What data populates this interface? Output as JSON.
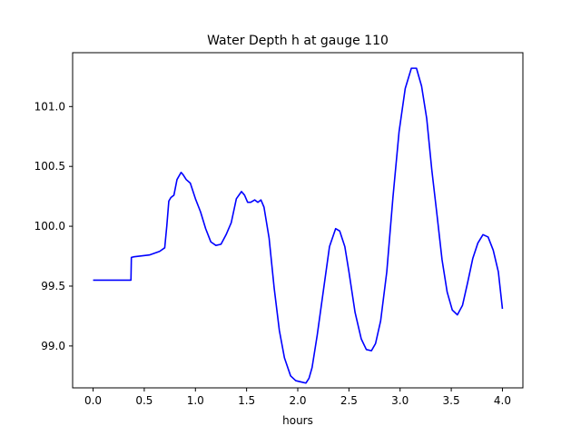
{
  "chart_data": {
    "type": "line",
    "title": "Water Depth h at gauge 110",
    "xlabel": "hours",
    "ylabel": "",
    "xlim": [
      -0.2,
      4.2
    ],
    "ylim": [
      98.65,
      101.45
    ],
    "xticks": [
      0.0,
      0.5,
      1.0,
      1.5,
      2.0,
      2.5,
      3.0,
      3.5,
      4.0
    ],
    "xtick_labels": [
      "0.0",
      "0.5",
      "1.0",
      "1.5",
      "2.0",
      "2.5",
      "3.0",
      "3.5",
      "4.0"
    ],
    "yticks": [
      99.0,
      99.5,
      100.0,
      100.5,
      101.0
    ],
    "ytick_labels": [
      "99.0",
      "99.5",
      "100.0",
      "100.5",
      "101.0"
    ],
    "grid": false,
    "series": [
      {
        "color": "#0000ff",
        "x": [
          0.0,
          0.2,
          0.37,
          0.374,
          0.4,
          0.55,
          0.65,
          0.7,
          0.72,
          0.74,
          0.76,
          0.79,
          0.82,
          0.86,
          0.88,
          0.91,
          0.95,
          1.0,
          1.05,
          1.1,
          1.15,
          1.2,
          1.25,
          1.3,
          1.35,
          1.4,
          1.45,
          1.48,
          1.51,
          1.54,
          1.58,
          1.61,
          1.64,
          1.67,
          1.72,
          1.77,
          1.82,
          1.87,
          1.93,
          1.98,
          2.03,
          2.08,
          2.11,
          2.14,
          2.19,
          2.25,
          2.31,
          2.37,
          2.41,
          2.46,
          2.5,
          2.56,
          2.62,
          2.67,
          2.72,
          2.76,
          2.81,
          2.87,
          2.93,
          2.99,
          3.05,
          3.11,
          3.16,
          3.21,
          3.26,
          3.31,
          3.36,
          3.41,
          3.46,
          3.51,
          3.56,
          3.61,
          3.66,
          3.71,
          3.76,
          3.81,
          3.86,
          3.91,
          3.96,
          4.0
        ],
        "y": [
          99.55,
          99.55,
          99.55,
          99.74,
          99.745,
          99.76,
          99.79,
          99.82,
          100.0,
          100.21,
          100.24,
          100.26,
          100.39,
          100.45,
          100.43,
          100.39,
          100.36,
          100.23,
          100.12,
          99.98,
          99.87,
          99.84,
          99.85,
          99.93,
          100.03,
          100.23,
          100.29,
          100.26,
          100.2,
          100.2,
          100.22,
          100.2,
          100.22,
          100.16,
          99.9,
          99.48,
          99.13,
          98.9,
          98.75,
          98.71,
          98.7,
          98.69,
          98.73,
          98.82,
          99.09,
          99.46,
          99.83,
          99.98,
          99.96,
          99.83,
          99.62,
          99.28,
          99.06,
          98.97,
          98.96,
          99.02,
          99.21,
          99.62,
          100.24,
          100.79,
          101.15,
          101.32,
          101.32,
          101.17,
          100.9,
          100.47,
          100.1,
          99.72,
          99.45,
          99.3,
          99.26,
          99.34,
          99.53,
          99.73,
          99.86,
          99.93,
          99.91,
          99.8,
          99.62,
          99.31
        ]
      }
    ]
  }
}
